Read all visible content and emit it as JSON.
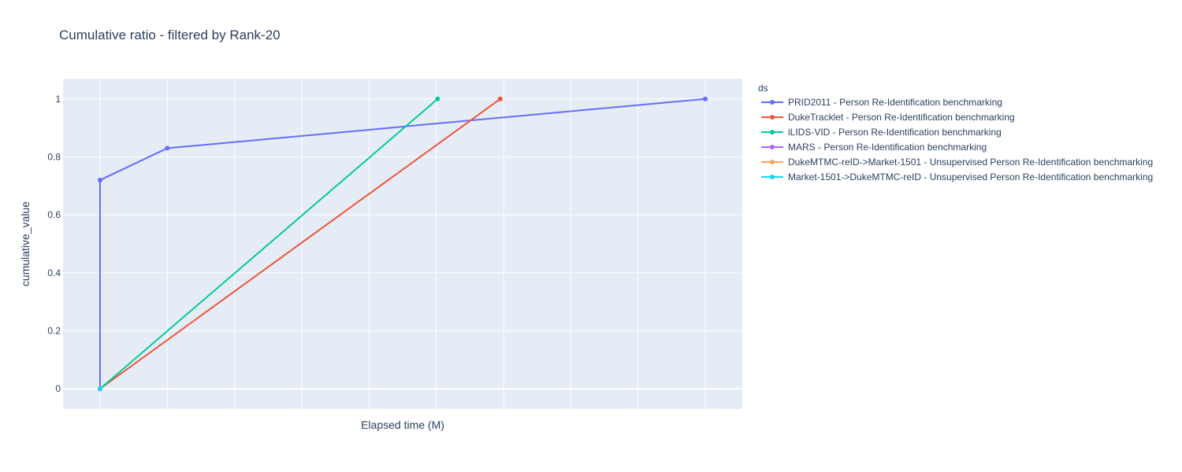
{
  "chart_data": {
    "type": "line",
    "title": "Cumulative ratio - filtered by Rank-20",
    "xlabel": "Elapsed time (M)",
    "ylabel": "cumulative_value",
    "x_tick_labels_shown": false,
    "y_ticks": [
      0,
      0.2,
      0.4,
      0.6,
      0.8,
      1
    ],
    "y_tick_labels": [
      "0",
      "0.2",
      "0.4",
      "0.6",
      "0.8",
      "1"
    ],
    "ylim": [
      -0.07,
      1.07
    ],
    "x_gridlines": [
      0,
      1,
      2,
      3,
      4,
      5,
      6,
      7,
      8,
      9
    ],
    "xlim": [
      -0.55,
      9.55
    ],
    "grid": true,
    "plot_background": "#E5ECF6",
    "legend": {
      "title": "ds",
      "placement": "right"
    },
    "series": [
      {
        "name": "PRID2011 - Person Re-Identification benchmarking",
        "color": "#636EFA",
        "x": [
          0,
          0,
          1,
          9
        ],
        "y": [
          0,
          0.72,
          0.83,
          1
        ]
      },
      {
        "name": "DukeTracklet - Person Re-Identification benchmarking",
        "color": "#EF553B",
        "x": [
          0,
          5.95
        ],
        "y": [
          0,
          1
        ]
      },
      {
        "name": "iLIDS-VID - Person Re-Identification benchmarking",
        "color": "#00CC96",
        "x": [
          0,
          5.02
        ],
        "y": [
          0,
          1
        ]
      },
      {
        "name": "MARS - Person Re-Identification benchmarking",
        "color": "#AB63FA",
        "x": [
          0
        ],
        "y": [
          0
        ]
      },
      {
        "name": "DukeMTMC-reID->Market-1501 - Unsupervised Person Re-Identification benchmarking",
        "color": "#FFA15A",
        "x": [
          0
        ],
        "y": [
          0
        ]
      },
      {
        "name": "Market-1501->DukeMTMC-reID - Unsupervised Person Re-Identification benchmarking",
        "color": "#19D3F3",
        "x": [
          0
        ],
        "y": [
          0
        ]
      }
    ]
  }
}
